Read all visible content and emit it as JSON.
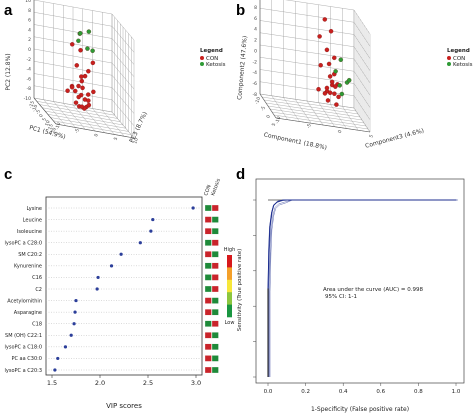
{
  "panels": {
    "a": "a",
    "b": "b",
    "c": "c",
    "d": "d"
  },
  "chart_data": [
    {
      "id": "a",
      "type": "scatter",
      "projection": "3d",
      "xlabel": "PC1 (54.9%)",
      "ylabel": "PC2 (12.8%)",
      "zlabel": "PC3 (8.7%)",
      "y_ticks": [
        -10,
        -8,
        -6,
        -4,
        -2,
        0,
        2,
        4,
        6,
        8,
        10
      ],
      "x_ticks": [
        -15,
        -10,
        -5,
        0,
        5,
        10,
        15,
        20
      ],
      "z_ticks": [
        -10,
        -5,
        0,
        5,
        10
      ],
      "legend": {
        "title": "Legend",
        "entries": [
          "CON",
          "Ketosis"
        ],
        "placement": "right"
      },
      "series": [
        {
          "name": "CON",
          "color": "#c8201e",
          "points": [
            [
              -3,
              -1,
              2
            ],
            [
              -2,
              -2,
              1
            ],
            [
              -1,
              -3,
              0
            ],
            [
              0,
              -4,
              -1
            ],
            [
              1,
              -5,
              -2
            ],
            [
              2,
              -4,
              -3
            ],
            [
              3,
              -5,
              1
            ],
            [
              4,
              -6,
              0
            ],
            [
              5,
              -4,
              2
            ],
            [
              -4,
              -5,
              -2
            ],
            [
              -5,
              -6,
              -3
            ],
            [
              -6,
              -5,
              1
            ],
            [
              -3,
              -7,
              2
            ],
            [
              -2,
              -6,
              0
            ],
            [
              0,
              -8,
              1
            ],
            [
              -4,
              -8,
              -1
            ],
            [
              -6,
              -7,
              0
            ],
            [
              -8,
              -3,
              1
            ],
            [
              -9,
              -1,
              0
            ],
            [
              -10,
              3,
              -1
            ],
            [
              -3,
              3,
              0
            ],
            [
              -2,
              1,
              3
            ],
            [
              1,
              -8,
              -1
            ],
            [
              3,
              -8,
              0
            ],
            [
              4,
              -7,
              1
            ],
            [
              -7,
              -9,
              1
            ]
          ]
        },
        {
          "name": "Ketosis",
          "color": "#2e9a35",
          "points": [
            [
              6,
              6,
              -2
            ],
            [
              4,
              8,
              1
            ],
            [
              8,
              5,
              0
            ],
            [
              2,
              7,
              -1
            ],
            [
              10,
              5,
              1
            ],
            [
              9,
              8,
              -2
            ]
          ]
        }
      ]
    },
    {
      "id": "b",
      "type": "scatter",
      "projection": "3d",
      "xlabel": "Component1 (18.8%)",
      "ylabel": "Component2 (47.6%)",
      "zlabel": "Component3 (4.6%)",
      "y_ticks": [
        -8,
        -6,
        -4,
        -2,
        0,
        2,
        4,
        6,
        8,
        10
      ],
      "x_ticks": [
        -10,
        -5,
        0,
        5
      ],
      "z_ticks": [
        -10,
        -5,
        0,
        5
      ],
      "legend": {
        "title": "Legend",
        "entries": [
          "CON",
          "Ketosis"
        ],
        "placement": "right"
      },
      "series": [
        {
          "name": "CON",
          "color": "#c8201e",
          "points": [
            [
              -8,
              8,
              0
            ],
            [
              -8,
              6,
              1
            ],
            [
              -7,
              5,
              -1
            ],
            [
              -6,
              3,
              0
            ],
            [
              -5,
              2,
              1
            ],
            [
              -4,
              1,
              0
            ],
            [
              -6,
              0,
              -1
            ],
            [
              -5,
              -1,
              1
            ],
            [
              -3,
              -1,
              0
            ],
            [
              -2,
              -2,
              1
            ],
            [
              -1,
              -2,
              0
            ],
            [
              0,
              -3,
              -1
            ],
            [
              -4,
              -3,
              1
            ],
            [
              -3,
              -4,
              0
            ],
            [
              -2,
              -4,
              -1
            ],
            [
              -6,
              -4,
              0
            ],
            [
              -7,
              -3,
              1
            ],
            [
              -1,
              -4,
              1
            ],
            [
              1,
              -3,
              0
            ],
            [
              -8,
              -5,
              -1
            ],
            [
              -5,
              -6,
              0
            ],
            [
              -3,
              -6,
              1
            ]
          ]
        },
        {
          "name": "Ketosis",
          "color": "#2e9a35",
          "points": [
            [
              7,
              5,
              0
            ],
            [
              8,
              3,
              -1
            ],
            [
              7,
              1,
              1
            ],
            [
              8,
              -1,
              0
            ],
            [
              9,
              2,
              1
            ],
            [
              6,
              0,
              0
            ]
          ]
        }
      ]
    },
    {
      "id": "c",
      "type": "scatter",
      "variant": "vip-dot-plot",
      "xlabel": "VIP scores",
      "ylabel": "",
      "xlim": [
        1.5,
        3.0
      ],
      "x_ticks": [
        1.5,
        2.0,
        2.5,
        3.0
      ],
      "grid": "horizontal-dotted",
      "categories": [
        "Lysine",
        "Leucine",
        "Isoleucine",
        "lysoPC a C28:0",
        "SM C20:2",
        "Kynurenine",
        "C16",
        "C2",
        "Acetylornithin",
        "Asparagine",
        "C18",
        "SM (OH) C22:1",
        "lysoPC a C18:0",
        "PC aa C30:0",
        "lysoPC a C20:3"
      ],
      "values": [
        2.97,
        2.55,
        2.53,
        2.42,
        2.22,
        2.12,
        1.98,
        1.97,
        1.75,
        1.74,
        1.73,
        1.7,
        1.64,
        1.56,
        1.53
      ],
      "point_color": "#2c3f9a",
      "heatmap": {
        "columns": [
          "CON",
          "Ketosis"
        ],
        "cells": [
          [
            "low",
            "high"
          ],
          [
            "high",
            "low"
          ],
          [
            "high",
            "low"
          ],
          [
            "low",
            "high"
          ],
          [
            "high",
            "low"
          ],
          [
            "low",
            "high"
          ],
          [
            "low",
            "high"
          ],
          [
            "low",
            "high"
          ],
          [
            "high",
            "low"
          ],
          [
            "high",
            "low"
          ],
          [
            "low",
            "high"
          ],
          [
            "high",
            "low"
          ],
          [
            "high",
            "low"
          ],
          [
            "high",
            "low"
          ],
          [
            "high",
            "low"
          ]
        ],
        "colorbar": {
          "high": "High",
          "low": "Low",
          "colors": [
            "#d7191c",
            "#f4a02a",
            "#f7e73a",
            "#8cc63f",
            "#1a9641"
          ]
        }
      }
    },
    {
      "id": "d",
      "type": "line",
      "variant": "roc",
      "xlabel": "1-Specificity (False positive rate)",
      "ylabel": "Sensitivity (True positive rate)",
      "xlim": [
        0,
        1
      ],
      "ylim": [
        0,
        1
      ],
      "x_ticks": [
        "0.0",
        "0.2",
        "0.4",
        "0.6",
        "0.8",
        "1.0"
      ],
      "y_ticks": [
        "0",
        "0.2",
        "0.4",
        "0.6",
        "0.8",
        "1"
      ],
      "annotation": [
        "Area under the curve (AUC) = 0.998",
        "95% CI: 1-1"
      ],
      "series": [
        {
          "name": "ROC",
          "color": "#1c2d8f",
          "x": [
            0,
            0,
            0.005,
            0.01,
            0.02,
            0.03,
            0.05,
            0.08,
            0.12,
            1
          ],
          "y": [
            0,
            0.5,
            0.72,
            0.85,
            0.93,
            0.97,
            0.99,
            1,
            1,
            1
          ]
        }
      ]
    }
  ]
}
